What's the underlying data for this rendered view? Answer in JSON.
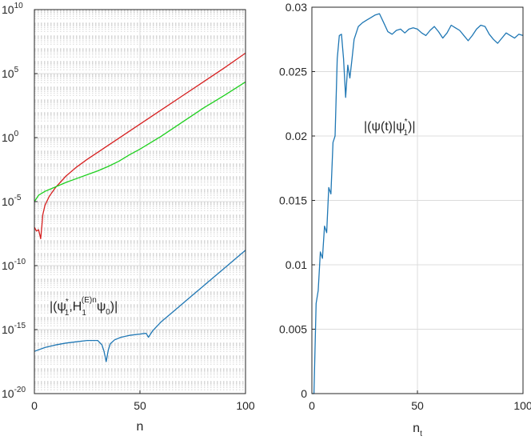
{
  "chart_data": [
    {
      "type": "line",
      "yscale": "log",
      "xlabel": "n",
      "ylabel": "",
      "xlim": [
        0,
        100
      ],
      "ylim_exponent": [
        -20,
        10
      ],
      "grid": "major and minor (y)",
      "x_ticks": [
        "0",
        "50",
        "100"
      ],
      "y_ticks": [
        {
          "base": "10",
          "exp": "10"
        },
        {
          "base": "10",
          "exp": "5"
        },
        {
          "base": "10",
          "exp": "0"
        },
        {
          "base": "10",
          "exp": "-5"
        },
        {
          "base": "10",
          "exp": "-10"
        },
        {
          "base": "10",
          "exp": "-15"
        },
        {
          "base": "10",
          "exp": "-20"
        }
      ],
      "annotation": {
        "open": "|(ψ",
        "sup1": "*",
        "sub1": "1",
        "mid": ",H",
        "sub2": "1",
        "sup2": "(E)n",
        "psi": "ψ",
        "sub3": "0",
        "close": ")|"
      },
      "series": [
        {
          "color": "#d62020",
          "x": [
            0,
            1,
            2,
            3,
            4,
            5,
            7,
            10,
            15,
            20,
            25,
            30,
            40,
            50,
            60,
            70,
            80,
            90,
            100
          ],
          "log10_y": [
            -7.0,
            -7.3,
            -7.2,
            -7.9,
            -6.0,
            -5.3,
            -4.6,
            -3.9,
            -3.0,
            -2.3,
            -1.7,
            -1.15,
            -0.05,
            1.05,
            2.15,
            3.25,
            4.35,
            5.45,
            6.6
          ]
        },
        {
          "color": "#1ed01e",
          "x": [
            0,
            2,
            5,
            10,
            15,
            20,
            25,
            30,
            35,
            40,
            45,
            50,
            55,
            60,
            70,
            80,
            90,
            100
          ],
          "log10_y": [
            -5.0,
            -4.5,
            -4.2,
            -3.85,
            -3.5,
            -3.2,
            -2.9,
            -2.6,
            -2.25,
            -1.85,
            -1.35,
            -0.9,
            -0.4,
            0.1,
            1.2,
            2.3,
            3.3,
            4.35
          ]
        },
        {
          "color": "#1f77b4",
          "x": [
            0,
            5,
            10,
            15,
            20,
            25,
            30,
            32,
            33,
            34,
            35,
            36,
            38,
            41,
            45,
            50,
            52,
            53,
            54,
            56,
            60,
            65,
            70,
            75,
            80,
            85,
            90,
            95,
            100
          ],
          "log10_y": [
            -16.7,
            -16.4,
            -16.2,
            -16.05,
            -15.95,
            -15.85,
            -15.85,
            -16.2,
            -16.7,
            -17.5,
            -16.6,
            -16.1,
            -15.8,
            -15.6,
            -15.45,
            -15.35,
            -15.3,
            -15.3,
            -15.6,
            -15.1,
            -14.4,
            -13.7,
            -13.0,
            -12.3,
            -11.6,
            -10.9,
            -10.2,
            -9.5,
            -8.8
          ]
        }
      ]
    },
    {
      "type": "line",
      "xlabel": "n",
      "xlabel_sub": "t",
      "ylabel": "",
      "xlim": [
        0,
        100
      ],
      "ylim": [
        0,
        0.03
      ],
      "grid": "major",
      "x_ticks": [
        "0",
        "50",
        "100"
      ],
      "y_ticks": [
        "0",
        "0.005",
        "0.01",
        "0.015",
        "0.02",
        "0.025",
        "0.03"
      ],
      "annotation": {
        "open": "|(ψ(t)|ψ",
        "sup": "*",
        "sub": "1",
        "close": ")|"
      },
      "series": [
        {
          "color": "#1f77b4",
          "x": [
            0,
            1,
            2,
            3,
            4,
            5,
            6,
            7,
            8,
            9,
            10,
            11,
            12,
            13,
            14,
            15,
            16,
            17,
            18,
            19,
            20,
            22,
            24,
            26,
            28,
            30,
            32,
            34,
            36,
            38,
            40,
            42,
            44,
            46,
            48,
            50,
            52,
            54,
            56,
            58,
            60,
            62,
            64,
            66,
            68,
            70,
            72,
            74,
            76,
            78,
            80,
            82,
            84,
            86,
            88,
            90,
            92,
            94,
            96,
            98,
            100
          ],
          "y": [
            0.0,
            0.0,
            0.007,
            0.008,
            0.011,
            0.0105,
            0.013,
            0.0125,
            0.016,
            0.0155,
            0.0195,
            0.02,
            0.026,
            0.0278,
            0.0279,
            0.026,
            0.023,
            0.0255,
            0.0245,
            0.026,
            0.0275,
            0.0285,
            0.0288,
            0.029,
            0.0292,
            0.0294,
            0.0295,
            0.0288,
            0.0281,
            0.0279,
            0.0282,
            0.0283,
            0.028,
            0.0283,
            0.0284,
            0.0283,
            0.028,
            0.0278,
            0.0282,
            0.0285,
            0.0281,
            0.0276,
            0.028,
            0.0286,
            0.0284,
            0.0282,
            0.0278,
            0.0274,
            0.0278,
            0.0283,
            0.0286,
            0.0285,
            0.0279,
            0.0275,
            0.0272,
            0.0276,
            0.028,
            0.0278,
            0.0276,
            0.0279,
            0.0278
          ]
        }
      ]
    }
  ]
}
